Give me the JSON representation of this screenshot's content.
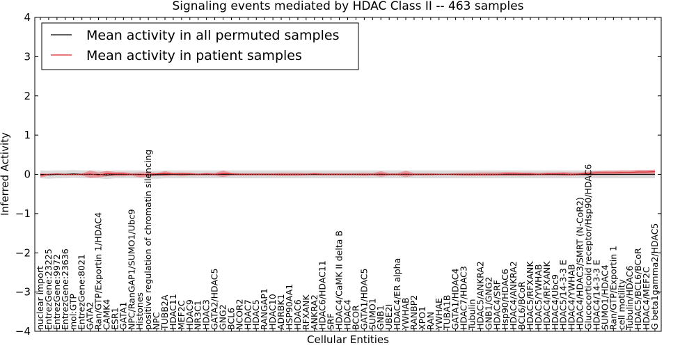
{
  "chart_data": {
    "type": "line",
    "title": "Signaling events mediated by HDAC Class II -- 463 samples",
    "xlabel": "Cellular Entities",
    "ylabel": "Inferred Activity",
    "ylim": [
      -4,
      4
    ],
    "yticks": [
      -4,
      -3,
      -2,
      -1,
      0,
      1,
      2,
      3,
      4
    ],
    "ytick_labels": [
      "−4",
      "−3",
      "−2",
      "−1",
      "0",
      "1",
      "2",
      "3",
      "4"
    ],
    "grid": false,
    "legend_position": "upper-left",
    "categories": [
      "nuclear import",
      "EntrezGene:23225",
      "EntrezGene:9972",
      "EntrezGene:23636",
      "mol:GTP",
      "EntrezGene:8021",
      "GATA2",
      "Ran/GTP/Exportin 1/HDAC4",
      "CAMK4",
      "ESR1",
      "GATA1",
      "NPC/RanGAP1/SUMO1/Ubc9",
      "Histones",
      "positive regulation of chromatin silencing",
      "NPC",
      "TUBB2A",
      "HDAC11",
      "MEF2C",
      "HDAC9",
      "NR3C1",
      "HDAC3",
      "GATA2/HDAC5",
      "GNG2",
      "BCL6",
      "NCOR2",
      "HDAC7",
      "HDAC5",
      "RANGAP1",
      "HDAC10",
      "ADRBK1",
      "HSP90AA1",
      "HDAC6",
      "RFXANK",
      "ANKRA2",
      "HDAC6/HDAC11",
      "SRF",
      "HDAC4/CaMK II delta B",
      "HDAC4",
      "BCOR",
      "GATA1/HDAC5",
      "SUMO1",
      "GNB1",
      "UBE2I",
      "HDAC4/ER alpha",
      "YWHAB",
      "RANBP2",
      "XPO1",
      "RAN",
      "YWHAE",
      "TUBA1B",
      "GATA1/HDAC4",
      "HDAC7/HDAC3",
      "Tubulin",
      "HDAC5/ANKRA2",
      "GNB1/GNG2",
      "HDAC4/SRF",
      "Hsp90/HDAC6",
      "HDAC4/ANKRA2",
      "BCL6/BCoR",
      "HDAC5/RFXANK",
      "HDAC5/YWHAB",
      "HDAC4/RFXANK",
      "HDAC4/Ubc9",
      "HDAC5/14-3-3 E",
      "HDAC4/YWHAB",
      "HDAC4/HDAC3/SMRT (N-CoR2)",
      "Glucocorticoid receptor/Hsp90/HDAC6",
      "HDAC4/14-3-3 E",
      "SUMO1/HDAC4",
      "Ran/GTP/Exportin 1",
      "cell motility",
      "Tubulin/HDAC6",
      "HDAC5/BCL6/BCoR",
      "HDAC4/MEF2C",
      "G beta1gamma2/HDAC5"
    ],
    "series": [
      {
        "name": "Mean activity in all permuted samples",
        "color": "#000000",
        "values": [
          0.0,
          -0.01,
          0.0,
          0.0,
          0.01,
          0.0,
          0.0,
          0.0,
          -0.02,
          0.0,
          0.0,
          0.0,
          0.0,
          -0.01,
          -0.01,
          0.0,
          0.0,
          0.0,
          0.0,
          0.0,
          0.0,
          0.0,
          0.0,
          0.0,
          0.0,
          0.0,
          0.0,
          0.0,
          0.0,
          0.0,
          0.0,
          0.0,
          0.0,
          0.0,
          0.0,
          0.0,
          0.0,
          0.0,
          0.0,
          0.0,
          0.0,
          0.0,
          0.0,
          0.0,
          0.0,
          0.0,
          0.0,
          0.0,
          0.0,
          0.0,
          0.0,
          0.0,
          0.0,
          0.0,
          0.0,
          0.0,
          0.0,
          0.0,
          0.0,
          0.0,
          0.0,
          0.0,
          0.0,
          0.0,
          0.0,
          0.0,
          0.0,
          0.0,
          0.0,
          0.0,
          0.0,
          0.0,
          0.0,
          0.0,
          0.0
        ],
        "band": 0.1,
        "band_color": "#cccccc"
      },
      {
        "name": "Mean activity in patient samples",
        "color": "#d62728",
        "values": [
          -0.03,
          0.0,
          0.01,
          0.0,
          0.0,
          0.0,
          0.01,
          -0.02,
          0.02,
          0.01,
          0.01,
          0.0,
          -0.01,
          0.0,
          0.01,
          0.02,
          0.01,
          0.01,
          0.01,
          0.0,
          0.01,
          0.0,
          0.02,
          0.01,
          0.0,
          0.0,
          0.0,
          0.0,
          0.0,
          0.0,
          0.0,
          0.0,
          0.0,
          0.01,
          0.0,
          0.0,
          0.0,
          0.0,
          0.0,
          0.0,
          0.0,
          0.01,
          0.0,
          0.0,
          0.01,
          0.0,
          0.0,
          0.0,
          0.0,
          0.0,
          0.0,
          0.0,
          0.0,
          0.0,
          0.0,
          0.0,
          0.01,
          0.01,
          0.01,
          0.01,
          0.0,
          0.01,
          0.01,
          0.01,
          0.0,
          0.01,
          0.02,
          0.04,
          0.04,
          0.04,
          0.05,
          0.05,
          0.06,
          0.06,
          0.07
        ],
        "band_upper": [
          0.03,
          0.02,
          0.02,
          0.02,
          0.02,
          0.02,
          0.1,
          0.05,
          0.09,
          0.06,
          0.06,
          0.03,
          0.05,
          0.06,
          0.03,
          0.08,
          0.04,
          0.05,
          0.04,
          0.02,
          0.04,
          0.03,
          0.1,
          0.04,
          0.03,
          0.03,
          0.03,
          0.03,
          0.03,
          0.04,
          0.04,
          0.04,
          0.03,
          0.04,
          0.03,
          0.03,
          0.03,
          0.03,
          0.03,
          0.04,
          0.03,
          0.08,
          0.03,
          0.03,
          0.09,
          0.03,
          0.03,
          0.03,
          0.02,
          0.02,
          0.03,
          0.04,
          0.04,
          0.05,
          0.05,
          0.05,
          0.06,
          0.06,
          0.05,
          0.05,
          0.04,
          0.05,
          0.05,
          0.06,
          0.05,
          0.05,
          0.07,
          0.08,
          0.09,
          0.09,
          0.1,
          0.1,
          0.11,
          0.11,
          0.12
        ],
        "band_lower": [
          -0.08,
          -0.03,
          -0.02,
          -0.03,
          -0.03,
          -0.03,
          -0.09,
          -0.08,
          -0.05,
          -0.05,
          -0.05,
          -0.03,
          -0.08,
          -0.06,
          -0.03,
          -0.05,
          -0.03,
          -0.05,
          -0.03,
          -0.03,
          -0.03,
          -0.03,
          -0.07,
          -0.03,
          -0.03,
          -0.03,
          -0.03,
          -0.03,
          -0.03,
          -0.04,
          -0.04,
          -0.04,
          -0.03,
          -0.03,
          -0.03,
          -0.03,
          -0.03,
          -0.03,
          -0.03,
          -0.04,
          -0.03,
          -0.06,
          -0.03,
          -0.03,
          -0.07,
          -0.03,
          -0.03,
          -0.03,
          -0.02,
          -0.02,
          -0.03,
          -0.04,
          -0.04,
          -0.04,
          -0.04,
          -0.04,
          -0.04,
          -0.04,
          -0.04,
          -0.04,
          -0.03,
          -0.03,
          -0.03,
          -0.04,
          -0.04,
          -0.03,
          -0.03,
          -0.02,
          -0.02,
          -0.02,
          -0.01,
          0.0,
          0.0,
          0.0,
          0.01
        ],
        "band_color": "#e8828a"
      }
    ]
  }
}
